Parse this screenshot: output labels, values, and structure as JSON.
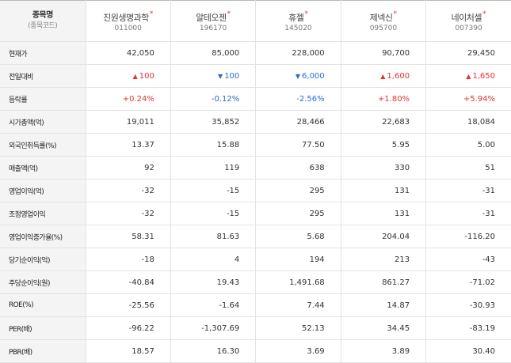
{
  "header": {
    "corner_title": "종목명",
    "corner_sub": "(종목코드)",
    "stocks": [
      {
        "name": "진원생명과학",
        "code": "011000",
        "star": "*"
      },
      {
        "name": "알테오젠",
        "code": "196170",
        "star": "*"
      },
      {
        "name": "휴젤",
        "code": "145020",
        "star": "*"
      },
      {
        "name": "제넥신",
        "code": "095700",
        "star": "*"
      },
      {
        "name": "네이처셀",
        "code": "007390",
        "star": "*"
      }
    ]
  },
  "colors": {
    "up": "#e23434",
    "down": "#2a6bd6"
  },
  "icons": {
    "up": "triangle-up-icon",
    "down": "triangle-down-icon"
  },
  "rows": [
    {
      "label": "현재가",
      "cells": [
        {
          "text": "42,050"
        },
        {
          "text": "85,000"
        },
        {
          "text": "228,000"
        },
        {
          "text": "90,700"
        },
        {
          "text": "29,450"
        }
      ]
    },
    {
      "label": "전일대비",
      "cells": [
        {
          "text": "100",
          "dir": "up",
          "arrow": "▲"
        },
        {
          "text": "100",
          "dir": "down",
          "arrow": "▼"
        },
        {
          "text": "6,000",
          "dir": "down",
          "arrow": "▼"
        },
        {
          "text": "1,600",
          "dir": "up",
          "arrow": "▲"
        },
        {
          "text": "1,650",
          "dir": "up",
          "arrow": "▲"
        }
      ]
    },
    {
      "label": "등락률",
      "cells": [
        {
          "text": "+0.24%",
          "dir": "up"
        },
        {
          "text": "-0.12%",
          "dir": "down"
        },
        {
          "text": "-2.56%",
          "dir": "down"
        },
        {
          "text": "+1.80%",
          "dir": "up"
        },
        {
          "text": "+5.94%",
          "dir": "up"
        }
      ]
    },
    {
      "label": "시가총액(억)",
      "cells": [
        {
          "text": "19,011"
        },
        {
          "text": "35,852"
        },
        {
          "text": "28,466"
        },
        {
          "text": "22,683"
        },
        {
          "text": "18,084"
        }
      ]
    },
    {
      "label": "외국인취득률(%)",
      "cells": [
        {
          "text": "13.37"
        },
        {
          "text": "15.88"
        },
        {
          "text": "77.50"
        },
        {
          "text": "5.95"
        },
        {
          "text": "5.00"
        }
      ]
    },
    {
      "label": "매출액(억)",
      "cells": [
        {
          "text": "92"
        },
        {
          "text": "119"
        },
        {
          "text": "638"
        },
        {
          "text": "330"
        },
        {
          "text": "51"
        }
      ]
    },
    {
      "label": "영업이익(억)",
      "cells": [
        {
          "text": "-32"
        },
        {
          "text": "-15"
        },
        {
          "text": "295"
        },
        {
          "text": "131"
        },
        {
          "text": "-31"
        }
      ]
    },
    {
      "label": "조정영업이익",
      "cells": [
        {
          "text": "-32"
        },
        {
          "text": "-15"
        },
        {
          "text": "295"
        },
        {
          "text": "131"
        },
        {
          "text": "-31"
        }
      ]
    },
    {
      "label": "영업이익증가율(%)",
      "cells": [
        {
          "text": "58.31"
        },
        {
          "text": "81.63"
        },
        {
          "text": "5.68"
        },
        {
          "text": "204.04"
        },
        {
          "text": "-116.20"
        }
      ]
    },
    {
      "label": "당기순이익(억)",
      "cells": [
        {
          "text": "-18"
        },
        {
          "text": "4"
        },
        {
          "text": "194"
        },
        {
          "text": "213"
        },
        {
          "text": "-43"
        }
      ]
    },
    {
      "label": "주당순이익(원)",
      "cells": [
        {
          "text": "-40.84"
        },
        {
          "text": "19.43"
        },
        {
          "text": "1,491.68"
        },
        {
          "text": "861.27"
        },
        {
          "text": "-71.02"
        }
      ]
    },
    {
      "label": "ROE(%)",
      "cells": [
        {
          "text": "-25.56"
        },
        {
          "text": "-1.64"
        },
        {
          "text": "7.44"
        },
        {
          "text": "14.87"
        },
        {
          "text": "-30.93"
        }
      ]
    },
    {
      "label": "PER(배)",
      "cells": [
        {
          "text": "-96.22"
        },
        {
          "text": "-1,307.69"
        },
        {
          "text": "52.13"
        },
        {
          "text": "34.45"
        },
        {
          "text": "-83.19"
        }
      ]
    },
    {
      "label": "PBR(배)",
      "cells": [
        {
          "text": "18.57"
        },
        {
          "text": "16.30"
        },
        {
          "text": "3.69"
        },
        {
          "text": "3.89"
        },
        {
          "text": "30.40"
        }
      ]
    }
  ]
}
